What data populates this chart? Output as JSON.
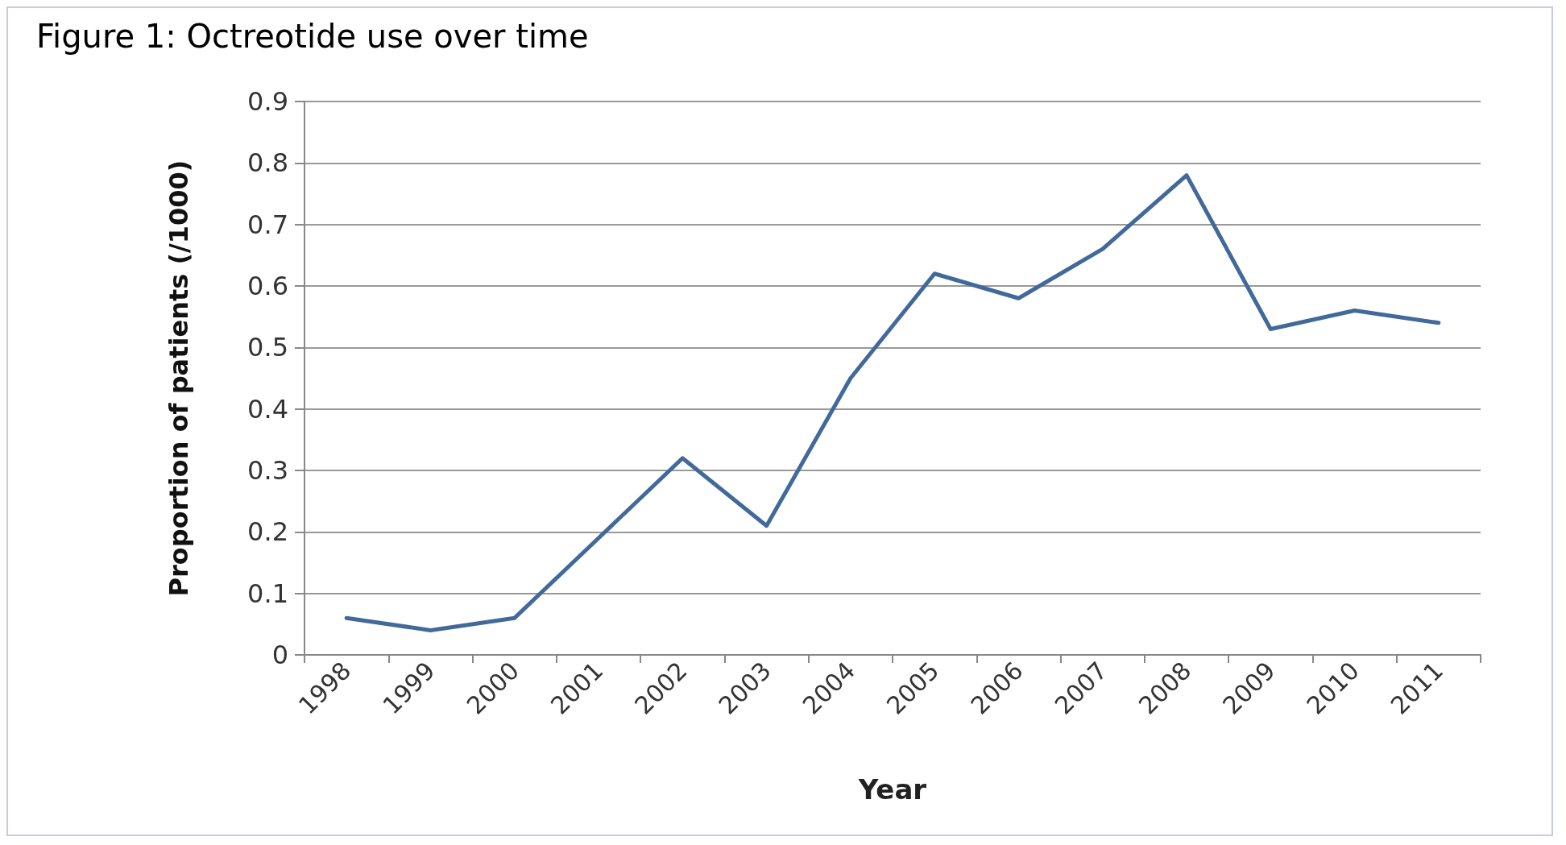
{
  "chart_data": {
    "type": "line",
    "title": "Figure 1: Octreotide use over time",
    "xlabel": "Year",
    "ylabel": "Proportion of patients (/1000)",
    "categories": [
      "1998",
      "1999",
      "2000",
      "2001",
      "2002",
      "2003",
      "2004",
      "2005",
      "2006",
      "2007",
      "2008",
      "2009",
      "2010",
      "2011"
    ],
    "series": [
      {
        "color": "#41699a",
        "values": [
          0.06,
          0.04,
          0.06,
          0.19,
          0.32,
          0.21,
          0.45,
          0.62,
          0.58,
          0.66,
          0.78,
          0.53,
          0.56,
          0.54
        ]
      }
    ],
    "ylim": [
      0,
      0.9
    ],
    "yticks": [
      0,
      0.1,
      0.2,
      0.3,
      0.4,
      0.5,
      0.6,
      0.7,
      0.8,
      0.9
    ],
    "grid": "y",
    "marker": "none",
    "line_style": "solid"
  }
}
